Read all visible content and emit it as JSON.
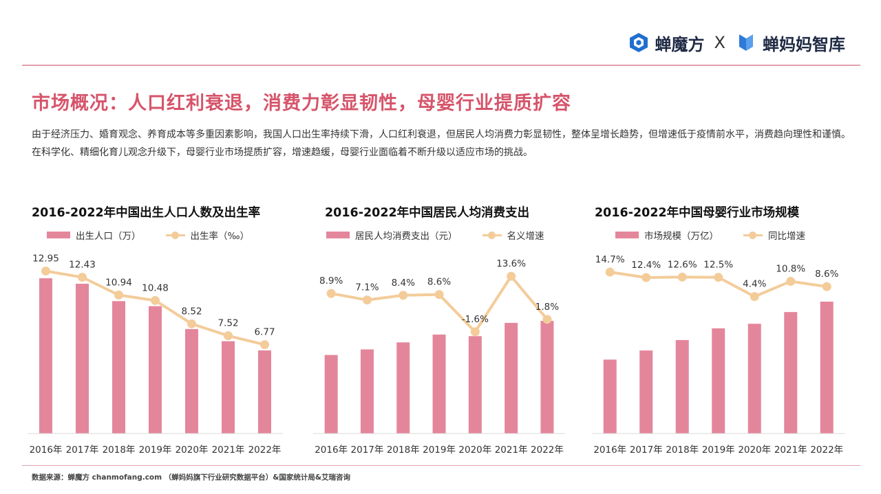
{
  "brand": {
    "logo1": "蝉魔方",
    "separator": "X",
    "logo2": "蝉妈妈智库",
    "logo1_color": "#1f6fd0",
    "logo2_color": "#2d7ad8"
  },
  "title": "市场概况：人口红利衰退，消费力彰显韧性，母婴行业提质扩容",
  "intro": "由于经济压力、婚育观念、养育成本等多重因素影响，我国人口出生率持续下滑，人口红利衰退，但居民人均消费力彰显韧性，整体呈增长趋势，但增速低于疫情前水平，消费趋向理性和谨慎。在科学化、精细化育儿观念升级下，母婴行业市场提质扩容，增速趋缓，母婴行业面临着不断升级以适应市场的挑战。",
  "colors": {
    "accent": "#d6546a",
    "bar": "#e4869b",
    "line": "#f3cc9a"
  },
  "chart_data": [
    {
      "type": "bar",
      "title": "2016-2022年中国出生人口人数及出生率",
      "categories": [
        "2016年",
        "2017年",
        "2018年",
        "2019年",
        "2020年",
        "2021年",
        "2022年"
      ],
      "series": [
        {
          "name": "出生人口（万）",
          "type": "bar",
          "values": [
            1786,
            1723,
            1523,
            1465,
            1202,
            1062,
            956
          ]
        },
        {
          "name": "出生率（‰）",
          "type": "line",
          "values": [
            12.95,
            12.43,
            10.94,
            10.48,
            8.52,
            7.52,
            6.77
          ],
          "labels": [
            "12.95",
            "12.43",
            "10.94",
            "10.48",
            "8.52",
            "7.52",
            "6.77"
          ]
        }
      ]
    },
    {
      "type": "bar",
      "title": "2016-2022年中国居民人均消费支出",
      "categories": [
        "2016年",
        "2017年",
        "2018年",
        "2019年",
        "2020年",
        "2021年",
        "2022年"
      ],
      "series": [
        {
          "name": "居民人均消费支出（元）",
          "type": "bar",
          "values": [
            17111,
            18322,
            19853,
            21559,
            21210,
            24100,
            24538
          ]
        },
        {
          "name": "名义增速",
          "type": "line",
          "values": [
            8.9,
            7.1,
            8.4,
            8.6,
            -1.6,
            13.6,
            1.8
          ],
          "labels": [
            "8.9%",
            "7.1%",
            "8.4%",
            "8.6%",
            "-1.6%",
            "13.6%",
            "1.8%"
          ]
        }
      ]
    },
    {
      "type": "bar",
      "title": "2016-2022年中国母婴行业市场规模",
      "categories": [
        "2016年",
        "2017年",
        "2018年",
        "2019年",
        "2020年",
        "2021年",
        "2022年"
      ],
      "series": [
        {
          "name": "市场规模（万亿）",
          "type": "bar",
          "values": [
            2.27,
            2.55,
            2.87,
            3.23,
            3.37,
            3.73,
            4.05
          ]
        },
        {
          "name": "同比增速",
          "type": "line",
          "values": [
            14.7,
            12.4,
            12.6,
            12.5,
            4.4,
            10.8,
            8.6
          ],
          "labels": [
            "14.7%",
            "12.4%",
            "12.6%",
            "12.5%",
            "4.4%",
            "10.8%",
            "8.6%"
          ]
        }
      ]
    }
  ],
  "source": "数据来源：蝉魔方 chanmofang.com （蝉妈妈旗下行业研究数据平台）&国家统计局&艾瑞咨询"
}
